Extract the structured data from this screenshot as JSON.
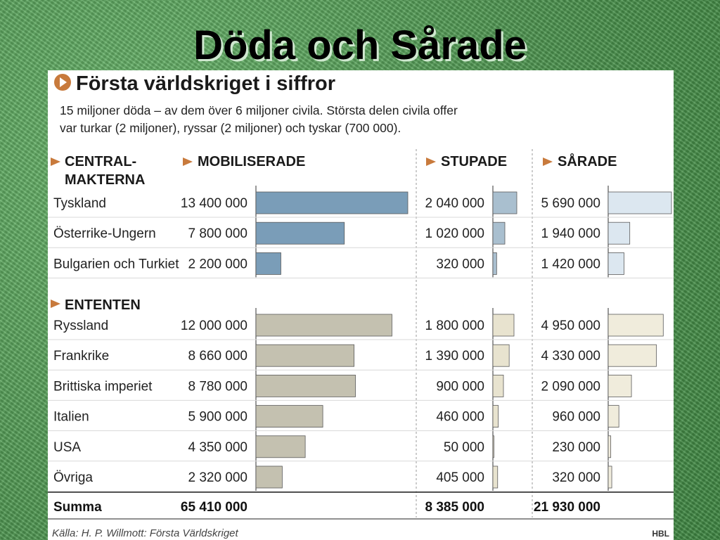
{
  "slide": {
    "title": "Döda och Sårade"
  },
  "panel": {
    "heading": "Första världskriget i siffror",
    "intro_line1": "15 miljoner döda – av dem över 6 miljoner civila. Största delen civila offer",
    "intro_line2": "var turkar (2 miljoner), ryssar (2 miljoner) och tyskar (700 000).",
    "source": "Källa: H. P. Willmott: Första Världskriget",
    "brand": "HBL"
  },
  "colors": {
    "central_mob": "#7a9db8",
    "central_stu": "#a9bfcf",
    "central_sar": "#dce7f0",
    "entente_mob": "#c4c1b0",
    "entente_stu": "#e8e3cf",
    "entente_sar": "#f0ecdc",
    "arrow": "#c87a3c"
  },
  "chart_data": {
    "type": "bar",
    "columns": [
      "MOBILISERADE",
      "STUPADE",
      "SÅRADE"
    ],
    "groups": [
      {
        "label_line1": "CENTRAL-",
        "label_line2": "MAKTERNA",
        "key": "central",
        "rows": [
          {
            "country": "Tyskland",
            "mobiliserade": 13400000,
            "mob_label": "13 400 000",
            "stupade": 2040000,
            "stu_label": "2 040 000",
            "sarade": 5690000,
            "sar_label": "5 690 000"
          },
          {
            "country": "Österrike-Ungern",
            "mobiliserade": 7800000,
            "mob_label": "7 800 000",
            "stupade": 1020000,
            "stu_label": "1 020 000",
            "sarade": 1940000,
            "sar_label": "1 940 000"
          },
          {
            "country": "Bulgarien och Turkiet",
            "mobiliserade": 2200000,
            "mob_label": "2 200 000",
            "stupade": 320000,
            "stu_label": "320 000",
            "sarade": 1420000,
            "sar_label": "1 420 000"
          }
        ]
      },
      {
        "label_line1": "ENTENTEN",
        "label_line2": "",
        "key": "entente",
        "rows": [
          {
            "country": "Ryssland",
            "mobiliserade": 12000000,
            "mob_label": "12 000 000",
            "stupade": 1800000,
            "stu_label": "1 800 000",
            "sarade": 4950000,
            "sar_label": "4 950 000"
          },
          {
            "country": "Frankrike",
            "mobiliserade": 8660000,
            "mob_label": "8 660 000",
            "stupade": 1390000,
            "stu_label": "1 390 000",
            "sarade": 4330000,
            "sar_label": "4 330 000"
          },
          {
            "country": "Brittiska imperiet",
            "mobiliserade": 8780000,
            "mob_label": "8 780 000",
            "stupade": 900000,
            "stu_label": "900 000",
            "sarade": 2090000,
            "sar_label": "2 090 000"
          },
          {
            "country": "Italien",
            "mobiliserade": 5900000,
            "mob_label": "5 900 000",
            "stupade": 460000,
            "stu_label": "460 000",
            "sarade": 960000,
            "sar_label": "960 000"
          },
          {
            "country": "USA",
            "mobiliserade": 4350000,
            "mob_label": "4 350 000",
            "stupade": 50000,
            "stu_label": "50 000",
            "sarade": 230000,
            "sar_label": "230 000"
          },
          {
            "country": "Övriga",
            "mobiliserade": 2320000,
            "mob_label": "2 320 000",
            "stupade": 405000,
            "stu_label": "405 000",
            "sarade": 320000,
            "sar_label": "320 000"
          }
        ]
      }
    ],
    "totals": {
      "label": "Summa",
      "mobiliserade": "65 410 000",
      "stupade": "8 385 000",
      "sarade": "21 930 000"
    }
  }
}
